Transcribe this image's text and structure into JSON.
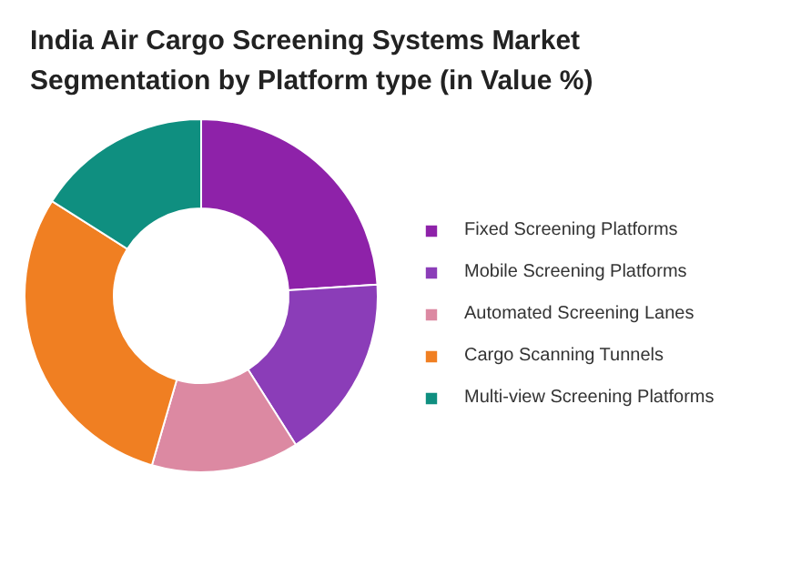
{
  "chart_data": {
    "type": "donut",
    "title": "India Air Cargo Screening Systems Market Segmentation by Platform type (in Value %)",
    "categories": [
      "Fixed Screening Platforms",
      "Mobile Screening Platforms",
      "Automated Screening Lanes",
      "Cargo Scanning Tunnels",
      "Multi-view Screening Platforms"
    ],
    "values": [
      24,
      17,
      13.5,
      29.5,
      16
    ],
    "colors": [
      "#8e22a9",
      "#8b3db8",
      "#dc89a2",
      "#f07f22",
      "#0f8f80"
    ],
    "legend": "right"
  }
}
